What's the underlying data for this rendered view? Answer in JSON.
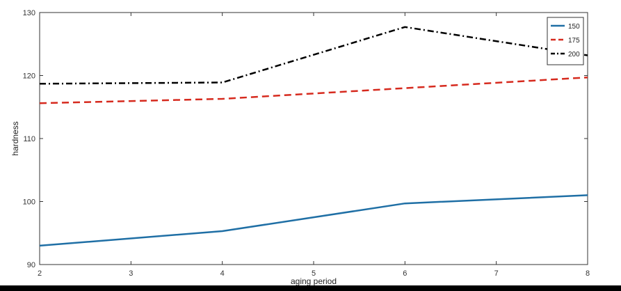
{
  "chart_data": {
    "type": "line",
    "title": "",
    "xlabel": "aging period",
    "ylabel": "hardness",
    "xlim": [
      2,
      8
    ],
    "ylim": [
      90,
      130
    ],
    "x_ticks": [
      2,
      3,
      4,
      5,
      6,
      7,
      8
    ],
    "y_ticks": [
      90,
      100,
      110,
      120,
      130
    ],
    "grid": false,
    "legend_position": "top-right",
    "series": [
      {
        "name": "150",
        "color": "#1f6fa5",
        "style": "solid",
        "x": [
          2,
          4,
          6,
          8
        ],
        "y": [
          93.0,
          95.3,
          99.7,
          101.0
        ]
      },
      {
        "name": "175",
        "color": "#d62a1e",
        "style": "dashed",
        "x": [
          2,
          4,
          6,
          8
        ],
        "y": [
          115.6,
          116.3,
          118.0,
          119.7
        ]
      },
      {
        "name": "200",
        "color": "#000000",
        "style": "dashdot",
        "x": [
          2,
          4,
          6,
          8
        ],
        "y": [
          118.7,
          118.9,
          127.7,
          123.2
        ]
      }
    ]
  }
}
